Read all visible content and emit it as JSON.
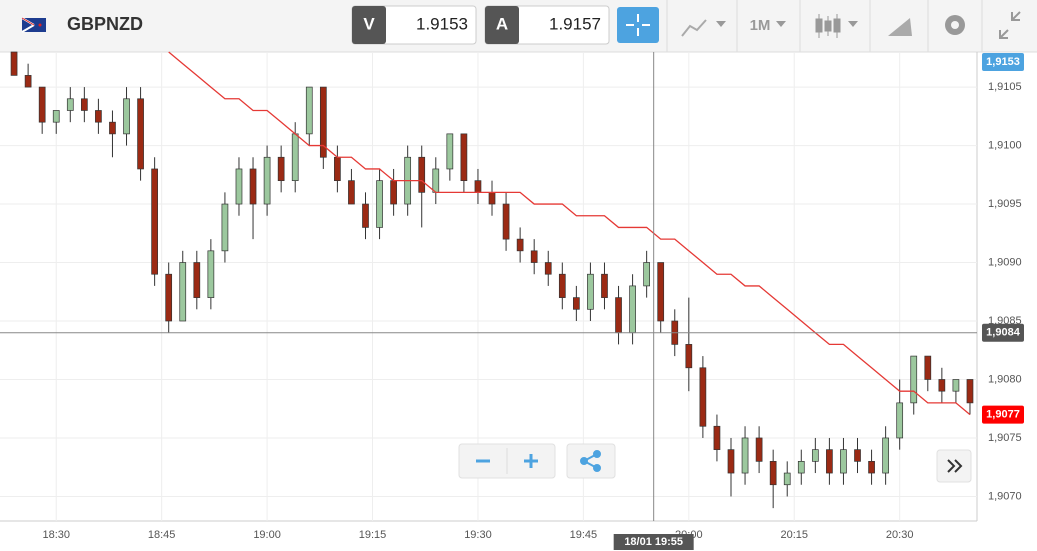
{
  "toolbar": {
    "symbol": "GBPNZD",
    "sell_label": "V",
    "sell_price": "1.9153",
    "buy_label": "A",
    "buy_price": "1.9157",
    "timeframe": "1M"
  },
  "chart_data": {
    "type": "candlestick",
    "x": [
      "18:24",
      "18:26",
      "18:28",
      "18:30",
      "18:32",
      "18:34",
      "18:36",
      "18:38",
      "18:40",
      "18:42",
      "18:44",
      "18:46",
      "18:48",
      "18:50",
      "18:52",
      "18:54",
      "18:56",
      "18:58",
      "19:00",
      "19:02",
      "19:04",
      "19:06",
      "19:08",
      "19:10",
      "19:12",
      "19:14",
      "19:16",
      "19:18",
      "19:20",
      "19:22",
      "19:24",
      "19:26",
      "19:28",
      "19:30",
      "19:32",
      "19:34",
      "19:36",
      "19:38",
      "19:40",
      "19:42",
      "19:44",
      "19:46",
      "19:48",
      "19:50",
      "19:52",
      "19:54",
      "19:56",
      "19:58",
      "20:00",
      "20:02",
      "20:04",
      "20:06",
      "20:08",
      "20:10",
      "20:12",
      "20:14",
      "20:16",
      "20:18",
      "20:20",
      "20:22",
      "20:24",
      "20:26",
      "20:28",
      "20:30",
      "20:32",
      "20:34",
      "20:36",
      "20:38",
      "20:40"
    ],
    "ohlc": [
      [
        1.9108,
        1.9108,
        1.9106,
        1.9106
      ],
      [
        1.9106,
        1.9107,
        1.9105,
        1.9105
      ],
      [
        1.9105,
        1.9105,
        1.9101,
        1.9102
      ],
      [
        1.9102,
        1.9103,
        1.9101,
        1.9103
      ],
      [
        1.9103,
        1.9105,
        1.9102,
        1.9104
      ],
      [
        1.9104,
        1.9105,
        1.9102,
        1.9103
      ],
      [
        1.9103,
        1.9104,
        1.9101,
        1.9102
      ],
      [
        1.9102,
        1.9103,
        1.9099,
        1.9101
      ],
      [
        1.9101,
        1.9105,
        1.91,
        1.9104
      ],
      [
        1.9104,
        1.9105,
        1.9097,
        1.9098
      ],
      [
        1.9098,
        1.9099,
        1.9088,
        1.9089
      ],
      [
        1.9089,
        1.909,
        1.9084,
        1.9085
      ],
      [
        1.9085,
        1.9091,
        1.9085,
        1.909
      ],
      [
        1.909,
        1.9091,
        1.9086,
        1.9087
      ],
      [
        1.9087,
        1.9092,
        1.9086,
        1.9091
      ],
      [
        1.9091,
        1.9096,
        1.909,
        1.9095
      ],
      [
        1.9095,
        1.9099,
        1.9094,
        1.9098
      ],
      [
        1.9098,
        1.9099,
        1.9092,
        1.9095
      ],
      [
        1.9095,
        1.91,
        1.9094,
        1.9099
      ],
      [
        1.9099,
        1.91,
        1.9096,
        1.9097
      ],
      [
        1.9097,
        1.9102,
        1.9096,
        1.9101
      ],
      [
        1.9101,
        1.9105,
        1.91,
        1.9105
      ],
      [
        1.9105,
        1.9105,
        1.9098,
        1.9099
      ],
      [
        1.9099,
        1.91,
        1.9096,
        1.9097
      ],
      [
        1.9097,
        1.9098,
        1.9095,
        1.9095
      ],
      [
        1.9095,
        1.9096,
        1.9092,
        1.9093
      ],
      [
        1.9093,
        1.9098,
        1.9092,
        1.9097
      ],
      [
        1.9097,
        1.9098,
        1.9094,
        1.9095
      ],
      [
        1.9095,
        1.91,
        1.9094,
        1.9099
      ],
      [
        1.9099,
        1.91,
        1.9093,
        1.9096
      ],
      [
        1.9096,
        1.9099,
        1.9095,
        1.9098
      ],
      [
        1.9098,
        1.9101,
        1.9097,
        1.9101
      ],
      [
        1.9101,
        1.9101,
        1.9096,
        1.9097
      ],
      [
        1.9097,
        1.9098,
        1.9095,
        1.9096
      ],
      [
        1.9096,
        1.9097,
        1.9094,
        1.9095
      ],
      [
        1.9095,
        1.9096,
        1.9091,
        1.9092
      ],
      [
        1.9092,
        1.9093,
        1.909,
        1.9091
      ],
      [
        1.9091,
        1.9092,
        1.9089,
        1.909
      ],
      [
        1.909,
        1.9091,
        1.9088,
        1.9089
      ],
      [
        1.9089,
        1.909,
        1.9086,
        1.9087
      ],
      [
        1.9087,
        1.9088,
        1.9085,
        1.9086
      ],
      [
        1.9086,
        1.909,
        1.9085,
        1.9089
      ],
      [
        1.9089,
        1.909,
        1.9086,
        1.9087
      ],
      [
        1.9087,
        1.9088,
        1.9083,
        1.9084
      ],
      [
        1.9084,
        1.9089,
        1.9083,
        1.9088
      ],
      [
        1.9088,
        1.9091,
        1.9087,
        1.909
      ],
      [
        1.909,
        1.909,
        1.9084,
        1.9085
      ],
      [
        1.9085,
        1.9086,
        1.9082,
        1.9083
      ],
      [
        1.9083,
        1.9087,
        1.9079,
        1.9081
      ],
      [
        1.9081,
        1.9082,
        1.9075,
        1.9076
      ],
      [
        1.9076,
        1.9077,
        1.9073,
        1.9074
      ],
      [
        1.9074,
        1.9075,
        1.907,
        1.9072
      ],
      [
        1.9072,
        1.9076,
        1.9071,
        1.9075
      ],
      [
        1.9075,
        1.9076,
        1.9072,
        1.9073
      ],
      [
        1.9073,
        1.9074,
        1.9069,
        1.9071
      ],
      [
        1.9071,
        1.9073,
        1.907,
        1.9072
      ],
      [
        1.9072,
        1.9074,
        1.9071,
        1.9073
      ],
      [
        1.9073,
        1.9075,
        1.9072,
        1.9074
      ],
      [
        1.9074,
        1.9075,
        1.9071,
        1.9072
      ],
      [
        1.9072,
        1.9075,
        1.9071,
        1.9074
      ],
      [
        1.9074,
        1.9075,
        1.9072,
        1.9073
      ],
      [
        1.9073,
        1.9074,
        1.9071,
        1.9072
      ],
      [
        1.9072,
        1.9076,
        1.9071,
        1.9075
      ],
      [
        1.9075,
        1.908,
        1.9074,
        1.9078
      ],
      [
        1.9078,
        1.9082,
        1.9077,
        1.9082
      ],
      [
        1.9082,
        1.9082,
        1.9079,
        1.908
      ],
      [
        1.908,
        1.9081,
        1.9078,
        1.9079
      ],
      [
        1.9079,
        1.908,
        1.9078,
        1.908
      ],
      [
        1.908,
        1.908,
        1.9077,
        1.9078
      ]
    ],
    "moving_average": {
      "color": "#e53935",
      "values": [
        null,
        null,
        null,
        null,
        null,
        null,
        null,
        null,
        null,
        null,
        null,
        1.9108,
        1.9107,
        1.9106,
        1.9105,
        1.9104,
        1.9104,
        1.9103,
        1.9103,
        1.9102,
        1.9101,
        1.91,
        1.91,
        1.9099,
        1.9099,
        1.9098,
        1.9098,
        1.9097,
        1.9097,
        1.9097,
        1.9096,
        1.9096,
        1.9096,
        1.9096,
        1.9096,
        1.9096,
        1.9096,
        1.9095,
        1.9095,
        1.9095,
        1.9094,
        1.9094,
        1.9094,
        1.9093,
        1.9093,
        1.9093,
        1.9092,
        1.9092,
        1.9091,
        1.909,
        1.9089,
        1.9089,
        1.9088,
        1.9088,
        1.9087,
        1.9086,
        1.9085,
        1.9084,
        1.9083,
        1.9083,
        1.9082,
        1.9081,
        1.908,
        1.9079,
        1.9079,
        1.9078,
        1.9078,
        1.9078,
        1.9077
      ]
    },
    "up_color": "#9cc89e",
    "down_color": "#9b2a14",
    "grid": true,
    "ylim": [
      1.90679,
      1.9108
    ],
    "yticks": [
      {
        "value": 1.907,
        "label": "1,9070"
      },
      {
        "value": 1.9075,
        "label": "1,9075"
      },
      {
        "value": 1.908,
        "label": "1,9080"
      },
      {
        "value": 1.9085,
        "label": "1,9085"
      },
      {
        "value": 1.909,
        "label": "1,9090"
      },
      {
        "value": 1.9095,
        "label": "1,9095"
      },
      {
        "value": 1.91,
        "label": "1,9100"
      },
      {
        "value": 1.9105,
        "label": "1,9105"
      }
    ],
    "xlim": [
      "18:22",
      "20:41"
    ],
    "xticks": [
      "18:30",
      "18:45",
      "19:00",
      "19:15",
      "19:30",
      "19:45",
      "20:00",
      "20:15",
      "20:30"
    ],
    "top_badge": "1,9153",
    "crosshair": {
      "price": {
        "value": 1.9084,
        "label": "1,9084"
      },
      "time": "18/01 19:55"
    },
    "last_badge": {
      "value": 1.9077,
      "label": "1,9077"
    }
  }
}
